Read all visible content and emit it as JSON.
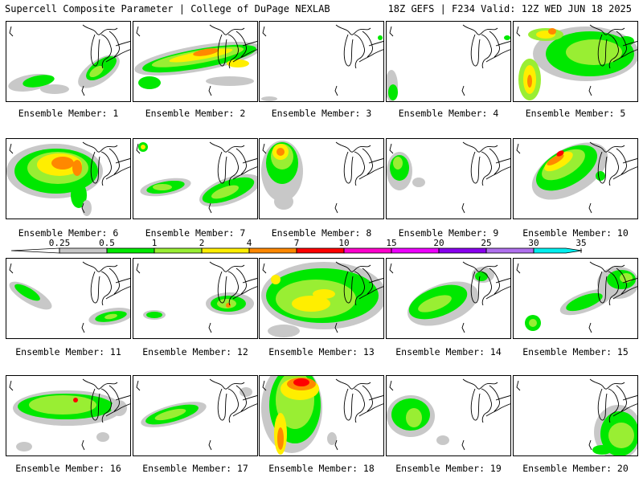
{
  "header": {
    "left": "Supercell Composite Parameter | College of DuPage NEXLAB",
    "right": "18Z GEFS | F234 Valid: 12Z WED JUN 18 2025"
  },
  "colors": {
    "gray": "#c8c8c8",
    "green": "#00e800",
    "ltgreen": "#99ee33",
    "yellow": "#ffee00",
    "orange": "#ff8800",
    "red": "#ff0000",
    "magenta": "#ff00cc",
    "violet": "#ee00ff",
    "purple": "#8800ee",
    "lavender": "#b070ee",
    "cyan": "#00eeee"
  },
  "colorbar": {
    "ticks": [
      "0.25",
      "0.5",
      "1",
      "2",
      "4",
      "7",
      "10",
      "15",
      "20",
      "25",
      "30",
      "35"
    ],
    "segment_colors": [
      "#c8c8c8",
      "#00e800",
      "#99ee33",
      "#ffee00",
      "#ff8800",
      "#ff0000",
      "#ff00cc",
      "#ee00ff",
      "#8800ee",
      "#b070ee",
      "#00eeee"
    ]
  },
  "panels": [
    {
      "caption": "Ensemble Member: 1"
    },
    {
      "caption": "Ensemble Member: 2"
    },
    {
      "caption": "Ensemble Member: 3"
    },
    {
      "caption": "Ensemble Member: 4"
    },
    {
      "caption": "Ensemble Member: 5"
    },
    {
      "caption": "Ensemble Member: 6"
    },
    {
      "caption": "Ensemble Member: 7"
    },
    {
      "caption": "Ensemble Member: 8"
    },
    {
      "caption": "Ensemble Member: 9"
    },
    {
      "caption": "Ensemble Member: 10"
    },
    {
      "caption": "Ensemble Member: 11"
    },
    {
      "caption": "Ensemble Member: 12"
    },
    {
      "caption": "Ensemble Member: 13"
    },
    {
      "caption": "Ensemble Member: 14"
    },
    {
      "caption": "Ensemble Member: 15"
    },
    {
      "caption": "Ensemble Member: 16"
    },
    {
      "caption": "Ensemble Member: 17"
    },
    {
      "caption": "Ensemble Member: 18"
    },
    {
      "caption": "Ensemble Member: 19"
    },
    {
      "caption": "Ensemble Member: 20"
    }
  ]
}
